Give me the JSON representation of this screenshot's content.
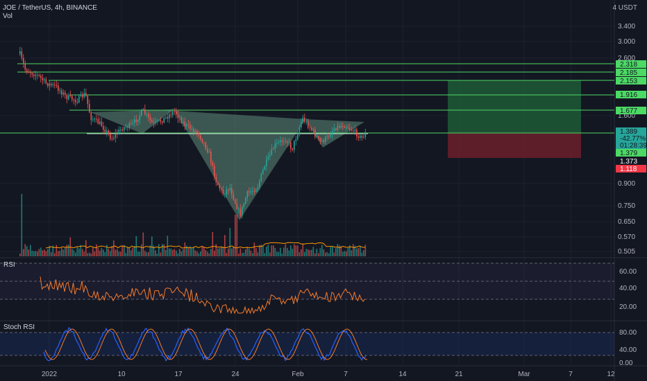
{
  "header": {
    "title": "JOE / TetherUS, 4h, BINANCE",
    "volume_label": "Vol",
    "currency": "4 USDT"
  },
  "colors": {
    "background": "#131722",
    "up": "#26a69a",
    "down": "#ef5350",
    "level_line": "#4cd964",
    "pattern_fill": "#5f8a78",
    "long_zone": "#1e5a36",
    "short_zone": "#6b1f2a",
    "rsi_line": "#f57c2a",
    "stoch_k": "#2962ff",
    "stoch_d": "#f57c2a",
    "volume_ma": "#ff9800"
  },
  "price_axis": {
    "ticks": [
      "3.400",
      "3.000",
      "2.600",
      "1.600",
      "0.900",
      "0.750",
      "0.650",
      "0.570",
      "0.505"
    ]
  },
  "price_labels": [
    {
      "text": "2.318",
      "kind": "level"
    },
    {
      "text": "2.185",
      "kind": "level"
    },
    {
      "text": "2.153",
      "kind": "level"
    },
    {
      "text": "1.916",
      "kind": "level"
    },
    {
      "text": "1.677",
      "kind": "level"
    },
    {
      "text": "1.389",
      "kind": "current"
    },
    {
      "text": "-42.77%",
      "kind": "current"
    },
    {
      "text": "01:28:39",
      "kind": "current"
    },
    {
      "text": "1.379",
      "kind": "level"
    },
    {
      "text": "1.373",
      "kind": "dark"
    },
    {
      "text": "1.118",
      "kind": "red"
    }
  ],
  "time_axis": {
    "labels": [
      "2022",
      "10",
      "17",
      "24",
      "Feb",
      "7",
      "14",
      "21",
      "Mar",
      "7",
      "12"
    ]
  },
  "rsi": {
    "title": "RSI",
    "ticks": [
      "60.00",
      "40.00",
      "20.00"
    ]
  },
  "stoch_rsi": {
    "title": "Stoch RSI",
    "ticks": [
      "80.00",
      "40.00",
      "0.00"
    ]
  }
}
